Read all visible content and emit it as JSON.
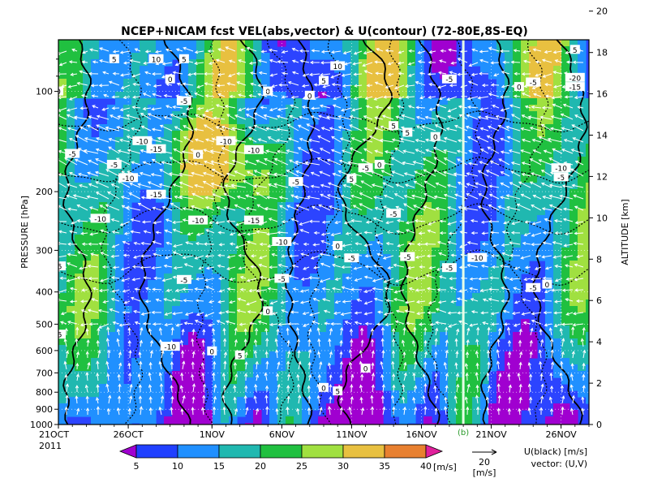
{
  "chart_data": {
    "type": "heatmap",
    "title": "NCEP+NICAM  fcst  VEL(abs,vector) & U(contour)   (72-80E,8S-EQ)",
    "ylabel_left": "PRESSURE [hPa]",
    "ylabel_right": "ALTITUDE [km]",
    "year_label": "2011",
    "x_ticks": [
      "21OCT",
      "26OCT",
      "1NOV",
      "6NOV",
      "11NOV",
      "16NOV",
      "21NOV",
      "26NOV"
    ],
    "x_range": [
      "2011-10-21",
      "2011-11-28"
    ],
    "forecast_start_label": "(b)",
    "forecast_start_date": "2011-11-19",
    "y_ticks_pressure": [
      100,
      200,
      300,
      400,
      500,
      600,
      700,
      800,
      900,
      1000
    ],
    "y_range_pressure": [
      1000,
      70
    ],
    "y_scale": "log",
    "y_ticks_altitude": [
      0,
      2,
      4,
      6,
      8,
      10,
      12,
      14,
      16,
      18,
      20
    ],
    "colorbar": {
      "levels": [
        5,
        10,
        15,
        20,
        25,
        30,
        35,
        40
      ],
      "unit": "[m/s]",
      "colors": [
        "#a000d0",
        "#2040ff",
        "#2090ff",
        "#20b8b0",
        "#20c040",
        "#a0e040",
        "#e8c040",
        "#e88030",
        "#e0209c"
      ]
    },
    "vector_legend": {
      "value": "20",
      "unit": "[m/s]"
    },
    "contour_legend": [
      "U(black) [m/s]",
      "vector: (U,V)"
    ],
    "contour_labels": [
      {
        "date": "2011-10-25",
        "p": 80,
        "value": 5
      },
      {
        "date": "2011-10-28",
        "p": 80,
        "value": 10
      },
      {
        "date": "2011-10-30",
        "p": 80,
        "value": 5
      },
      {
        "date": "2011-10-29",
        "p": 92,
        "value": 0
      },
      {
        "date": "2011-10-21",
        "p": 100,
        "value": 0
      },
      {
        "date": "2011-10-30",
        "p": 107,
        "value": -5
      },
      {
        "date": "2011-11-05",
        "p": 100,
        "value": 0
      },
      {
        "date": "2011-11-08",
        "p": 103,
        "value": 0
      },
      {
        "date": "2011-11-09",
        "p": 93,
        "value": 5
      },
      {
        "date": "2011-11-10",
        "p": 84,
        "value": 10
      },
      {
        "date": "2011-11-14",
        "p": 127,
        "value": 5
      },
      {
        "date": "2011-11-15",
        "p": 133,
        "value": 5
      },
      {
        "date": "2011-11-17",
        "p": 137,
        "value": 0
      },
      {
        "date": "2011-11-18",
        "p": 92,
        "value": -5
      },
      {
        "date": "2011-11-23",
        "p": 97,
        "value": 0
      },
      {
        "date": "2011-11-24",
        "p": 94,
        "value": -5
      },
      {
        "date": "2011-11-27",
        "p": 97,
        "value": -15
      },
      {
        "date": "2011-11-27",
        "p": 91,
        "value": -20
      },
      {
        "date": "2011-11-27",
        "p": 75,
        "value": 5
      },
      {
        "date": "2011-10-27",
        "p": 141,
        "value": -10
      },
      {
        "date": "2011-10-22",
        "p": 154,
        "value": -5
      },
      {
        "date": "2011-10-28",
        "p": 149,
        "value": -15
      },
      {
        "date": "2011-11-02",
        "p": 141,
        "value": -10
      },
      {
        "date": "2011-11-04",
        "p": 150,
        "value": -10
      },
      {
        "date": "2011-10-25",
        "p": 166,
        "value": -5
      },
      {
        "date": "2011-10-31",
        "p": 155,
        "value": 0
      },
      {
        "date": "2011-11-12",
        "p": 170,
        "value": -5
      },
      {
        "date": "2011-11-13",
        "p": 166,
        "value": 0
      },
      {
        "date": "2011-11-11",
        "p": 183,
        "value": 5
      },
      {
        "date": "2011-11-26",
        "p": 170,
        "value": -10
      },
      {
        "date": "2011-10-26",
        "p": 182,
        "value": -10
      },
      {
        "date": "2011-11-07",
        "p": 187,
        "value": -5
      },
      {
        "date": "2011-10-28",
        "p": 204,
        "value": -15
      },
      {
        "date": "2011-11-26",
        "p": 181,
        "value": -5
      },
      {
        "date": "2011-10-24",
        "p": 241,
        "value": -10
      },
      {
        "date": "2011-10-31",
        "p": 244,
        "value": -10
      },
      {
        "date": "2011-11-04",
        "p": 244,
        "value": -15
      },
      {
        "date": "2011-11-14",
        "p": 233,
        "value": -5
      },
      {
        "date": "2011-11-06",
        "p": 283,
        "value": -10
      },
      {
        "date": "2011-11-10",
        "p": 291,
        "value": 0
      },
      {
        "date": "2011-11-11",
        "p": 317,
        "value": -5
      },
      {
        "date": "2011-11-15",
        "p": 314,
        "value": -5
      },
      {
        "date": "2011-11-18",
        "p": 339,
        "value": -5
      },
      {
        "date": "2011-11-20",
        "p": 316,
        "value": -10
      },
      {
        "date": "2011-10-21",
        "p": 335,
        "value": -5
      },
      {
        "date": "2011-10-30",
        "p": 368,
        "value": -5
      },
      {
        "date": "2011-11-06",
        "p": 365,
        "value": -5
      },
      {
        "date": "2011-11-24",
        "p": 389,
        "value": -5
      },
      {
        "date": "2011-11-25",
        "p": 380,
        "value": 0
      },
      {
        "date": "2011-11-05",
        "p": 457,
        "value": 0
      },
      {
        "date": "2011-10-21",
        "p": 537,
        "value": -5
      },
      {
        "date": "2011-10-29",
        "p": 584,
        "value": -10
      },
      {
        "date": "2011-11-01",
        "p": 603,
        "value": 0
      },
      {
        "date": "2011-11-03",
        "p": 620,
        "value": 5
      },
      {
        "date": "2011-11-12",
        "p": 679,
        "value": 0
      },
      {
        "date": "2011-11-09",
        "p": 776,
        "value": 0
      },
      {
        "date": "2011-11-10",
        "p": 795,
        "value": 5
      }
    ]
  }
}
